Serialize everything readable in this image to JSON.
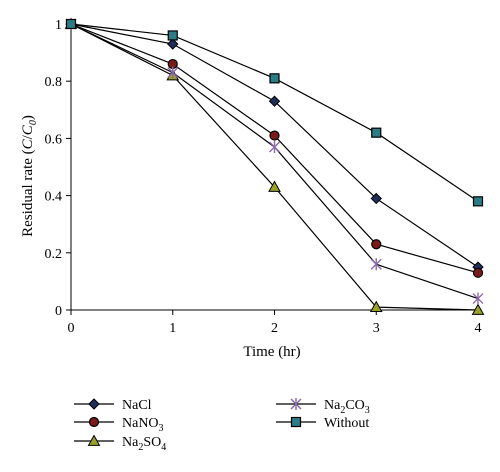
{
  "chart_data": {
    "type": "line",
    "title": "",
    "xlabel": "Time (hr)",
    "ylabel_parts": {
      "prefix": "Residual rate (",
      "c": "C",
      "slash": "/",
      "c0": "C",
      "c0_sub": "0",
      "suffix": ")"
    },
    "x": [
      0,
      1,
      2,
      3,
      4
    ],
    "xlim": [
      0,
      4
    ],
    "ylim": [
      0,
      1
    ],
    "x_ticks": [
      "0",
      "1",
      "2",
      "3",
      "4"
    ],
    "y_ticks": [
      "0",
      "0.2",
      "0.4",
      "0.6",
      "0.8",
      "1"
    ],
    "y_tick_values": [
      0,
      0.2,
      0.4,
      0.6,
      0.8,
      1
    ],
    "grid": false,
    "legend_position": "bottom",
    "series": [
      {
        "key": "nacl",
        "legend": {
          "main": "NaCl",
          "sub": "",
          "tail": ""
        },
        "marker": "diamond",
        "color": "#1f2f5a",
        "values": [
          1.0,
          0.93,
          0.73,
          0.39,
          0.15
        ]
      },
      {
        "key": "nano3",
        "legend": {
          "main": "NaNO",
          "sub": "3",
          "tail": ""
        },
        "marker": "circle",
        "color": "#7a1a1a",
        "values": [
          1.0,
          0.86,
          0.61,
          0.23,
          0.13
        ]
      },
      {
        "key": "na2so4",
        "legend": {
          "main": "Na",
          "sub": "2",
          "tail": "SO",
          "sub2": "4"
        },
        "marker": "triangle",
        "color": "#9aa12a",
        "values": [
          1.0,
          0.82,
          0.43,
          0.01,
          0.0
        ]
      },
      {
        "key": "na2co3",
        "legend": {
          "main": "Na",
          "sub": "2",
          "tail": "CO",
          "sub2": "3"
        },
        "marker": "star",
        "color": "#8a6aa8",
        "values": [
          1.0,
          0.83,
          0.57,
          0.16,
          0.04
        ]
      },
      {
        "key": "without",
        "legend": {
          "main": "Without",
          "sub": "",
          "tail": ""
        },
        "marker": "square",
        "color": "#2b7c86",
        "values": [
          1.0,
          0.96,
          0.81,
          0.62,
          0.38
        ]
      }
    ]
  }
}
